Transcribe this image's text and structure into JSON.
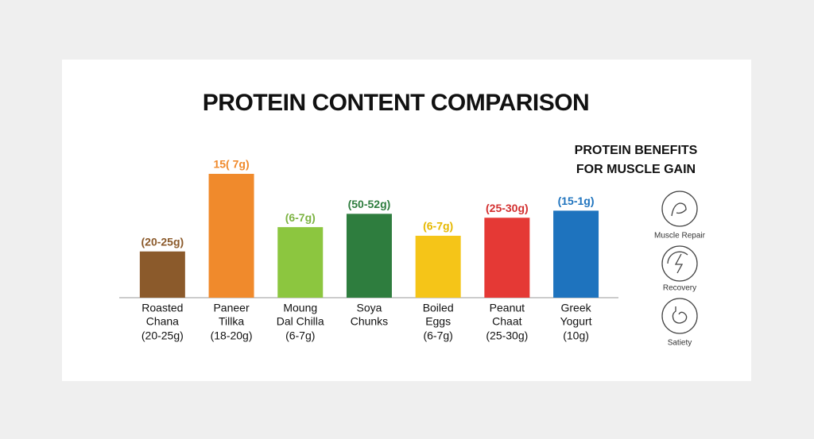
{
  "chart_data": {
    "type": "bar",
    "title": "PROTEIN CONTENT COMPARISON",
    "side_title": [
      "PROTEIN BENEFITS",
      "FOR MUSCLE GAIN"
    ],
    "categories": [
      [
        "Roasted",
        "Chana"
      ],
      [
        "Paneer",
        "Tillka"
      ],
      [
        "Moung",
        "Dal Chilla"
      ],
      [
        "Soya",
        "Chunks"
      ],
      [
        "Boiled",
        "Eggs"
      ],
      [
        "Peanut",
        "Chaat"
      ],
      [
        "Greek",
        "Yogurt"
      ]
    ],
    "portions": [
      "(20-25g)",
      "(18-20g)",
      "(6-7g)",
      null,
      "(6-7g)",
      "(25-30g)",
      "(10g)"
    ],
    "top_labels": [
      "(20-25g)",
      "15( 7g)",
      "(6-7g)",
      "(50-52g)",
      "(6-7g)",
      "(25-30g)",
      "(15-1g)"
    ],
    "values": [
      59,
      158,
      90,
      107,
      79,
      102,
      111
    ],
    "colors": [
      "#8b5a2b",
      "#f08a2c",
      "#8cc63f",
      "#2e7d3e",
      "#f5c518",
      "#e53935",
      "#1e73be"
    ],
    "label_colors": [
      "#8b5a2b",
      "#f08a2c",
      "#7cb342",
      "#2e7d3e",
      "#e6b800",
      "#d32f2f",
      "#1e73be"
    ],
    "ylim": [
      0,
      160
    ],
    "benefits": [
      "Muscle Repair",
      "Recovery",
      "Satiety"
    ]
  }
}
